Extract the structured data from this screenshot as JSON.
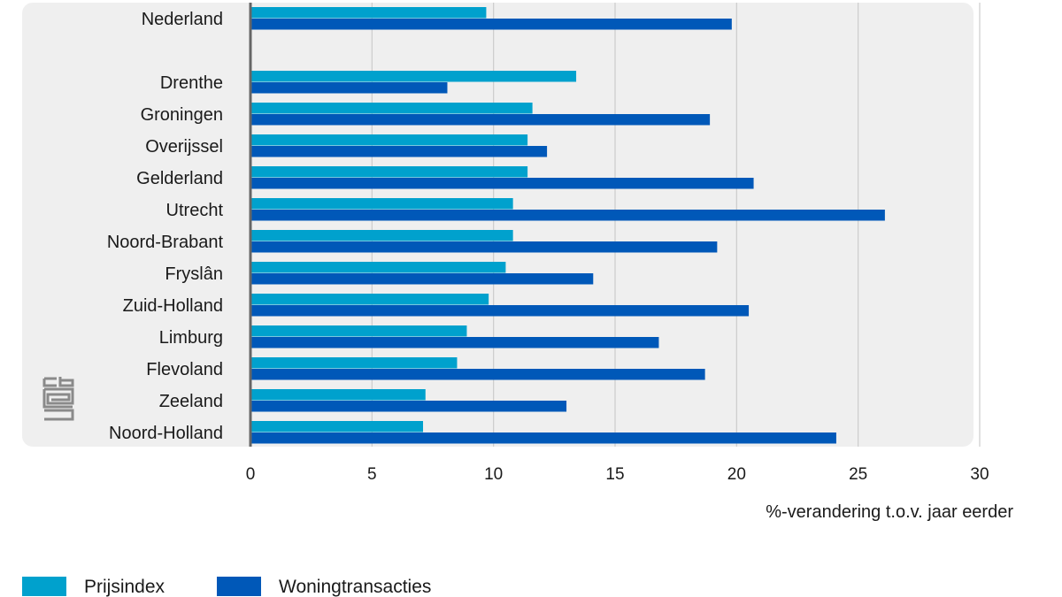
{
  "chart_data": {
    "type": "bar",
    "orientation": "horizontal",
    "categories": [
      "Nederland",
      "",
      "Drenthe",
      "Groningen",
      "Overijssel",
      "Gelderland",
      "Utrecht",
      "Noord-Brabant",
      "Fryslân",
      "Zuid-Holland",
      "Limburg",
      "Flevoland",
      "Zeeland",
      "Noord-Holland"
    ],
    "series": [
      {
        "name": "Prijsindex",
        "color": "#00a1cd",
        "values": [
          9.7,
          null,
          13.4,
          11.6,
          11.4,
          11.4,
          10.8,
          10.8,
          10.5,
          9.8,
          8.9,
          8.5,
          7.2,
          7.1
        ]
      },
      {
        "name": "Woningtransacties",
        "color": "#0058b8",
        "values": [
          19.8,
          null,
          8.1,
          18.9,
          12.2,
          20.7,
          26.1,
          19.2,
          14.1,
          20.5,
          16.8,
          18.7,
          13.0,
          24.1
        ]
      }
    ],
    "xlabel": "%-verandering t.o.v. jaar eerder",
    "ylabel": "",
    "xlim": [
      0,
      30
    ],
    "xticks": [
      0,
      5,
      10,
      15,
      20,
      25,
      30
    ],
    "grid": true,
    "legend_position": "bottom-left"
  },
  "logo": {
    "name": "cbs-logo",
    "color": "#8a8a8a"
  },
  "colors": {
    "panel_background": "#efefef",
    "gridline": "#cccccc",
    "axis": "#666666"
  }
}
